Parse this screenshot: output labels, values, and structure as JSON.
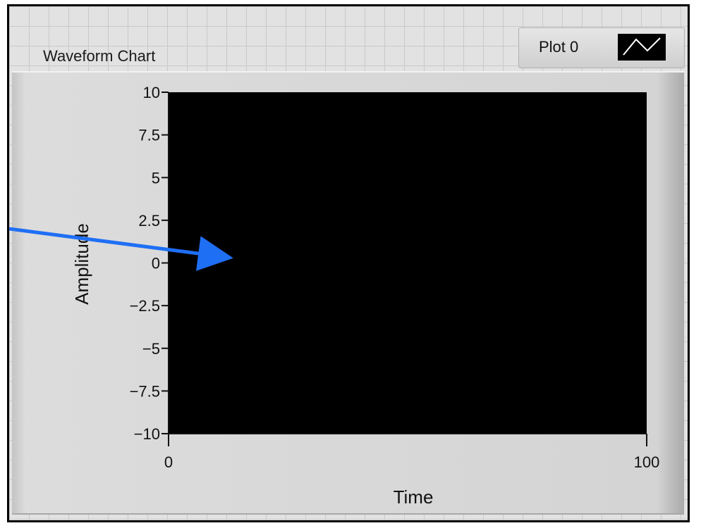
{
  "chart_label": "Waveform Chart",
  "legend": {
    "plot_name": "Plot 0",
    "icon": "line-plot-swatch-icon"
  },
  "colors": {
    "plot_background": "#000000",
    "arrow": "#1f6ff5",
    "frame_border": "#000000"
  },
  "chart_data": {
    "type": "line",
    "series": [],
    "xlabel": "Time",
    "ylabel": "Amplitude",
    "xlim": [
      0,
      100
    ],
    "ylim": [
      -10,
      10
    ],
    "y_ticks": [
      "10",
      "7.5",
      "5",
      "2.5",
      "0",
      "-2.5",
      "-5",
      "-7.5",
      "-10"
    ],
    "x_ticks": [
      "0",
      "100"
    ],
    "grid": false
  },
  "annotation": {
    "type": "arrow",
    "points_to": "plot area"
  }
}
